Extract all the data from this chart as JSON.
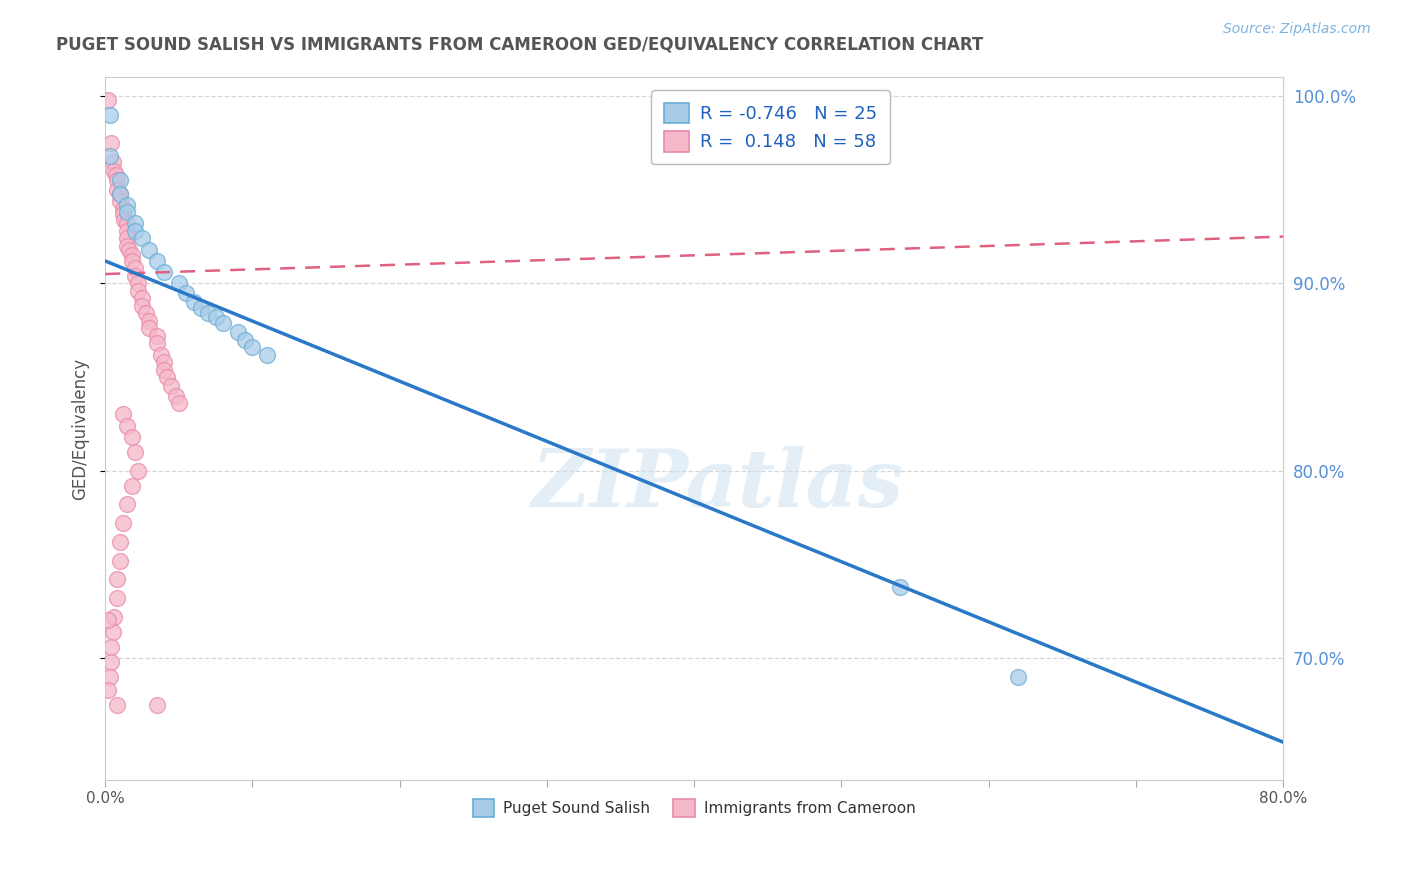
{
  "title": "PUGET SOUND SALISH VS IMMIGRANTS FROM CAMEROON GED/EQUIVALENCY CORRELATION CHART",
  "source": "Source: ZipAtlas.com",
  "xlabel_blue": "Puget Sound Salish",
  "xlabel_pink": "Immigrants from Cameroon",
  "ylabel": "GED/Equivalency",
  "xlim": [
    0.0,
    0.8
  ],
  "ylim": [
    0.635,
    1.01
  ],
  "xticks": [
    0.0,
    0.1,
    0.2,
    0.3,
    0.4,
    0.5,
    0.6,
    0.7,
    0.8
  ],
  "xtick_labels": [
    "0.0%",
    "",
    "",
    "",
    "",
    "",
    "",
    "",
    "80.0%"
  ],
  "yticks": [
    0.7,
    0.8,
    0.9,
    1.0
  ],
  "ytick_labels": [
    "70.0%",
    "80.0%",
    "90.0%",
    "100.0%"
  ],
  "blue_R": "-0.746",
  "blue_N": "25",
  "pink_R": "0.148",
  "pink_N": "58",
  "blue_color": "#a8cce8",
  "pink_color": "#f5b8c8",
  "blue_edge_color": "#6aaed6",
  "pink_edge_color": "#e88aaa",
  "blue_line_color": "#2979c8",
  "pink_line_color": "#e06080",
  "watermark": "ZIPatlas",
  "blue_scatter": [
    [
      0.003,
      0.99
    ],
    [
      0.003,
      0.968
    ],
    [
      0.01,
      0.955
    ],
    [
      0.01,
      0.948
    ],
    [
      0.015,
      0.942
    ],
    [
      0.015,
      0.938
    ],
    [
      0.02,
      0.932
    ],
    [
      0.02,
      0.928
    ],
    [
      0.025,
      0.924
    ],
    [
      0.03,
      0.918
    ],
    [
      0.035,
      0.912
    ],
    [
      0.04,
      0.906
    ],
    [
      0.05,
      0.9
    ],
    [
      0.055,
      0.895
    ],
    [
      0.06,
      0.89
    ],
    [
      0.065,
      0.887
    ],
    [
      0.07,
      0.884
    ],
    [
      0.075,
      0.882
    ],
    [
      0.08,
      0.879
    ],
    [
      0.09,
      0.874
    ],
    [
      0.095,
      0.87
    ],
    [
      0.1,
      0.866
    ],
    [
      0.11,
      0.862
    ],
    [
      0.54,
      0.738
    ],
    [
      0.62,
      0.69
    ]
  ],
  "pink_scatter": [
    [
      0.002,
      0.998
    ],
    [
      0.004,
      0.975
    ],
    [
      0.005,
      0.965
    ],
    [
      0.006,
      0.96
    ],
    [
      0.007,
      0.958
    ],
    [
      0.008,
      0.955
    ],
    [
      0.008,
      0.95
    ],
    [
      0.01,
      0.948
    ],
    [
      0.01,
      0.944
    ],
    [
      0.012,
      0.94
    ],
    [
      0.012,
      0.937
    ],
    [
      0.013,
      0.934
    ],
    [
      0.015,
      0.932
    ],
    [
      0.015,
      0.928
    ],
    [
      0.015,
      0.924
    ],
    [
      0.015,
      0.92
    ],
    [
      0.016,
      0.918
    ],
    [
      0.018,
      0.915
    ],
    [
      0.018,
      0.912
    ],
    [
      0.02,
      0.908
    ],
    [
      0.02,
      0.904
    ],
    [
      0.022,
      0.9
    ],
    [
      0.022,
      0.896
    ],
    [
      0.025,
      0.892
    ],
    [
      0.025,
      0.888
    ],
    [
      0.028,
      0.884
    ],
    [
      0.03,
      0.88
    ],
    [
      0.03,
      0.876
    ],
    [
      0.035,
      0.872
    ],
    [
      0.035,
      0.868
    ],
    [
      0.038,
      0.862
    ],
    [
      0.04,
      0.858
    ],
    [
      0.04,
      0.854
    ],
    [
      0.042,
      0.85
    ],
    [
      0.045,
      0.845
    ],
    [
      0.048,
      0.84
    ],
    [
      0.05,
      0.836
    ],
    [
      0.012,
      0.83
    ],
    [
      0.015,
      0.824
    ],
    [
      0.018,
      0.818
    ],
    [
      0.02,
      0.81
    ],
    [
      0.022,
      0.8
    ],
    [
      0.018,
      0.792
    ],
    [
      0.015,
      0.782
    ],
    [
      0.012,
      0.772
    ],
    [
      0.01,
      0.762
    ],
    [
      0.01,
      0.752
    ],
    [
      0.008,
      0.742
    ],
    [
      0.008,
      0.732
    ],
    [
      0.006,
      0.722
    ],
    [
      0.005,
      0.714
    ],
    [
      0.004,
      0.706
    ],
    [
      0.004,
      0.698
    ],
    [
      0.003,
      0.69
    ],
    [
      0.002,
      0.683
    ],
    [
      0.002,
      0.72
    ],
    [
      0.035,
      0.675
    ],
    [
      0.008,
      0.675
    ]
  ],
  "grid_color": "#cccccc",
  "bg_color": "#ffffff"
}
